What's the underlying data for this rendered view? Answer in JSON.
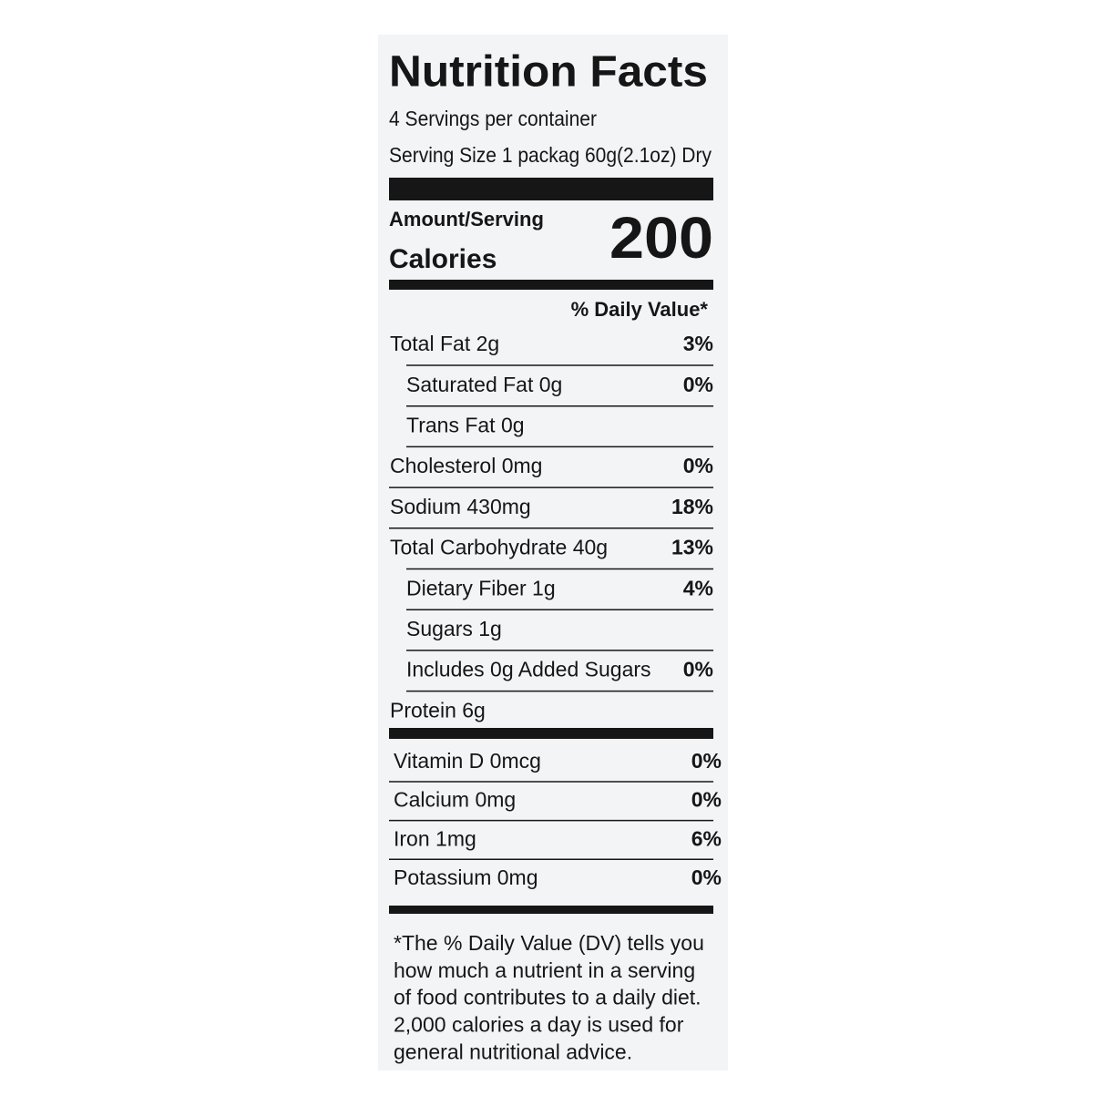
{
  "title": "Nutrition Facts",
  "servings": "4 Servings per container",
  "serving_size": "Serving Size 1 packag 60g(2.1oz) Dry",
  "amount_per_serving": "Amount/Serving",
  "calories_label": "Calories",
  "calories": 200,
  "daily_value_header": "% Daily Value*",
  "nutrients": [
    {
      "label": "Total Fat 2g",
      "dv": "3%",
      "indent": false
    },
    {
      "label": "Saturated Fat 0g",
      "dv": "0%",
      "indent": true
    },
    {
      "label": "Trans Fat 0g",
      "indent": true
    },
    {
      "label": "Cholesterol 0mg",
      "dv": "0%",
      "indent": false
    },
    {
      "label": "Sodium 430mg",
      "dv": "18%",
      "indent": false
    },
    {
      "label": "Total Carbohydrate 40g",
      "dv": "13%",
      "indent": false
    },
    {
      "label": "Dietary Fiber 1g",
      "dv": "4%",
      "indent": true
    },
    {
      "label": "Sugars 1g",
      "indent": true
    },
    {
      "label": "Includes 0g Added Sugars",
      "dv": "0%",
      "indent": true
    },
    {
      "label": "Protein 6g",
      "indent": false
    }
  ],
  "vitamins": [
    {
      "label": "Vitamin D 0mcg",
      "dv": "0%"
    },
    {
      "label": "Calcium 0mg",
      "dv": "0%"
    },
    {
      "label": "Iron 1mg",
      "dv": "6%"
    },
    {
      "label": "Potassium 0mg",
      "dv": "0%"
    }
  ],
  "footnote": [
    "*The % Daily Value (DV) tells you",
    "how much a nutrient in a serving",
    "of food contributes to a daily diet.",
    "2,000 calories a day is used for",
    "general nutritional advice."
  ]
}
